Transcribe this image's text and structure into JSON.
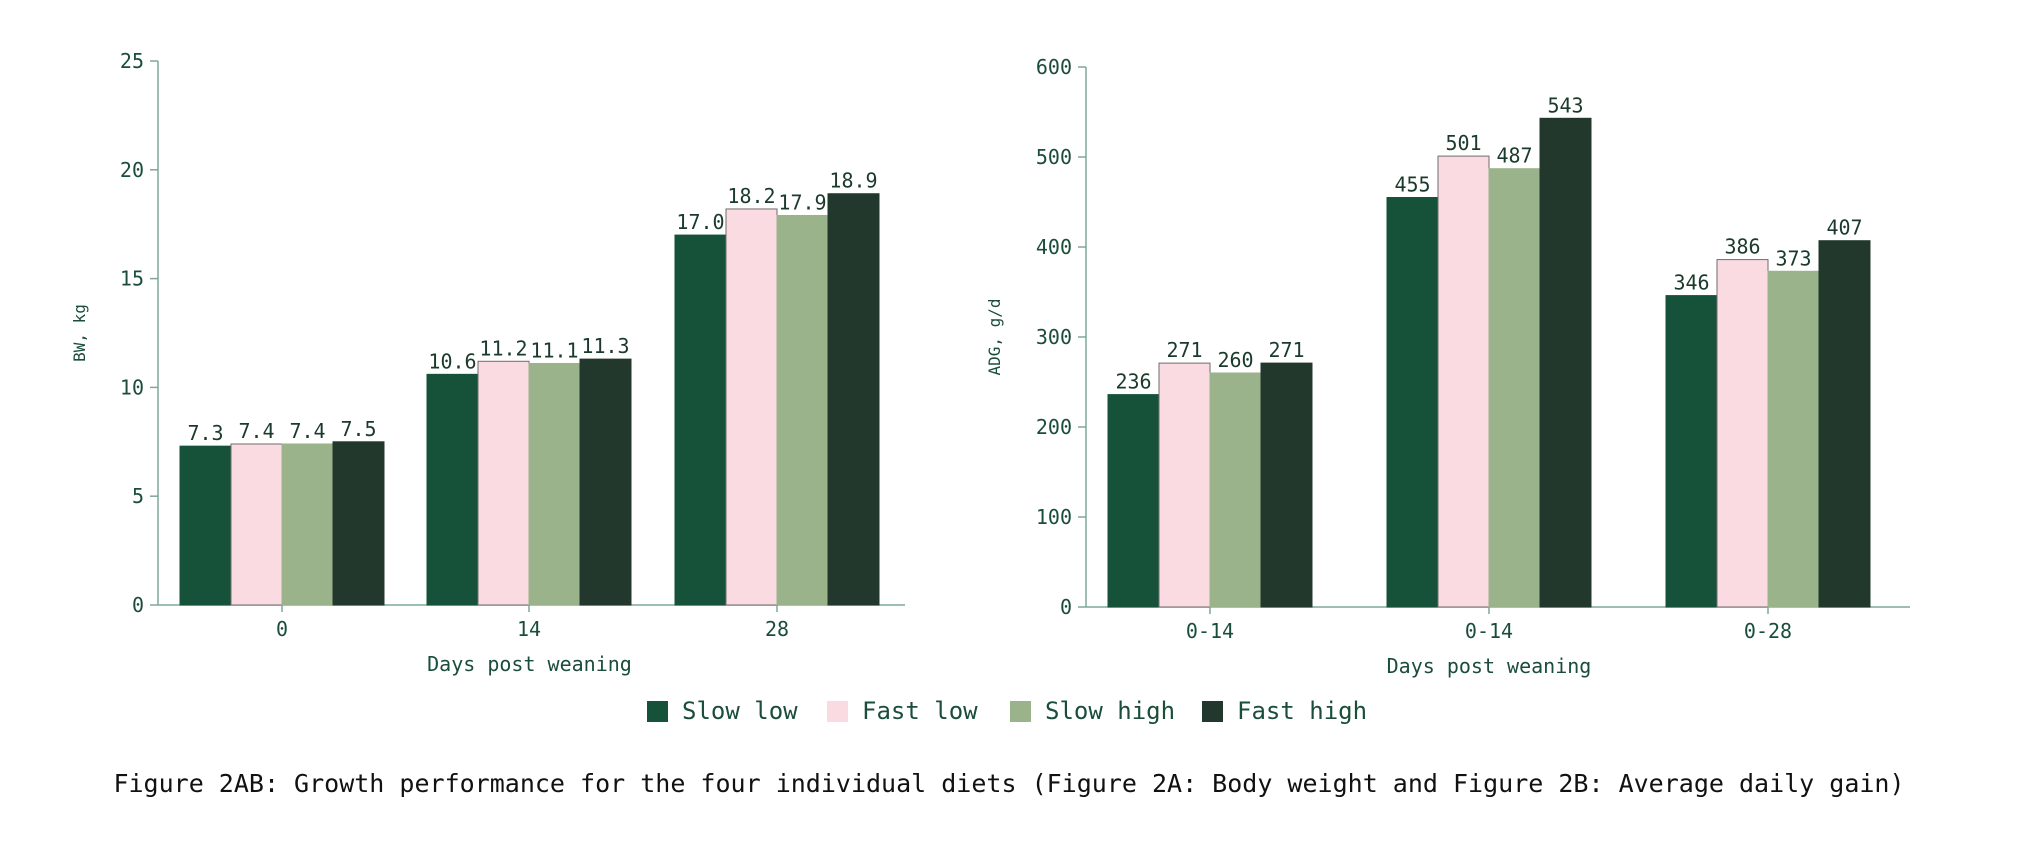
{
  "caption": "Figure 2AB: Growth performance for the four individual diets (Figure 2A: Body weight and Figure 2B: Average daily gain)",
  "legend": [
    {
      "label": "Slow low",
      "color": "#16523a"
    },
    {
      "label": "Fast low",
      "color": "#fadbe2"
    },
    {
      "label": "Slow high",
      "color": "#9ab38a"
    },
    {
      "label": "Fast high",
      "color": "#22382c"
    }
  ],
  "chart_data": [
    {
      "type": "bar",
      "xlabel": "Days post weaning",
      "ylabel": "BW, kg",
      "categories": [
        "0",
        "14",
        "28"
      ],
      "ylim": [
        0,
        25
      ],
      "yticks": [
        0,
        5,
        10,
        15,
        20,
        25
      ],
      "series": [
        {
          "name": "Slow low",
          "values": [
            7.3,
            10.6,
            17.0
          ],
          "labels": [
            "7.3",
            "10.6",
            "17.0"
          ]
        },
        {
          "name": "Fast low",
          "values": [
            7.4,
            11.2,
            18.2
          ],
          "labels": [
            "7.4",
            "11.2",
            "18.2"
          ]
        },
        {
          "name": "Slow high",
          "values": [
            7.4,
            11.1,
            17.9
          ],
          "labels": [
            "7.4",
            "11.1",
            "17.9"
          ]
        },
        {
          "name": "Fast high",
          "values": [
            7.5,
            11.3,
            18.9
          ],
          "labels": [
            "7.5",
            "11.3",
            "18.9"
          ]
        }
      ]
    },
    {
      "type": "bar",
      "xlabel": "Days post weaning",
      "ylabel": "ADG, g/d",
      "categories": [
        "0-14",
        "0-14",
        "0-28"
      ],
      "ylim": [
        0,
        600
      ],
      "yticks": [
        0,
        100,
        200,
        300,
        400,
        500,
        600
      ],
      "series": [
        {
          "name": "Slow low",
          "values": [
            236,
            455,
            346
          ],
          "labels": [
            "236",
            "455",
            "346"
          ]
        },
        {
          "name": "Fast low",
          "values": [
            271,
            501,
            386
          ],
          "labels": [
            "271",
            "501",
            "386"
          ]
        },
        {
          "name": "Slow high",
          "values": [
            260,
            487,
            373
          ],
          "labels": [
            "260",
            "487",
            "373"
          ]
        },
        {
          "name": "Fast high",
          "values": [
            271,
            543,
            407
          ],
          "labels": [
            "271",
            "543",
            "407"
          ]
        }
      ]
    }
  ]
}
